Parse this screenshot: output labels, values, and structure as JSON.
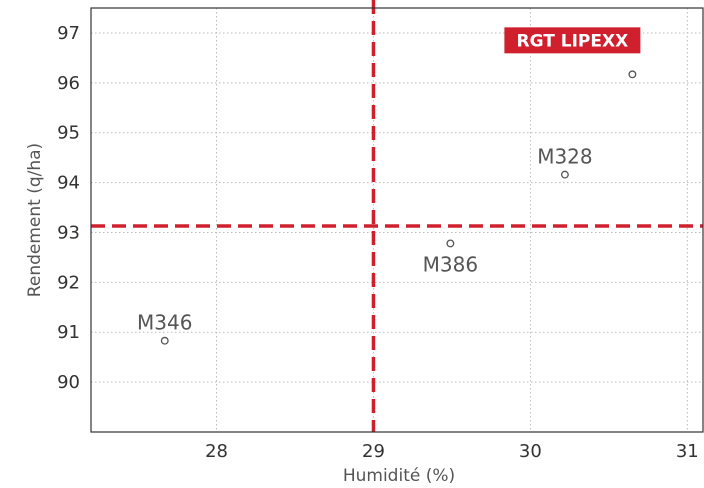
{
  "chart_data": {
    "type": "scatter",
    "xlabel": "Humidité (%)",
    "ylabel": "Rendement (q/ha)",
    "xlim": [
      27.2,
      31.1
    ],
    "ylim": [
      89.0,
      97.5
    ],
    "x_ticks": [
      "28",
      "29",
      "30",
      "31"
    ],
    "y_ticks": [
      "90",
      "91",
      "92",
      "93",
      "94",
      "95",
      "96",
      "97"
    ],
    "grid": true,
    "grid_style": "dotted",
    "points": [
      {
        "name": "M346",
        "x": 27.67,
        "y": 90.83
      },
      {
        "name": "M386",
        "x": 29.49,
        "y": 92.78
      },
      {
        "name": "M328",
        "x": 30.22,
        "y": 94.16
      },
      {
        "name": "RGT LIPEXX",
        "x": 30.65,
        "y": 96.17,
        "highlight": true
      }
    ],
    "reference_lines": {
      "x": 29.0,
      "y": 93.13,
      "color": "#d0202e",
      "style": "dashed"
    },
    "colors": {
      "highlight_bg": "#d0202e",
      "point_stroke": "#555555",
      "grid": "#bbbbbb",
      "frame": "#333333"
    }
  }
}
